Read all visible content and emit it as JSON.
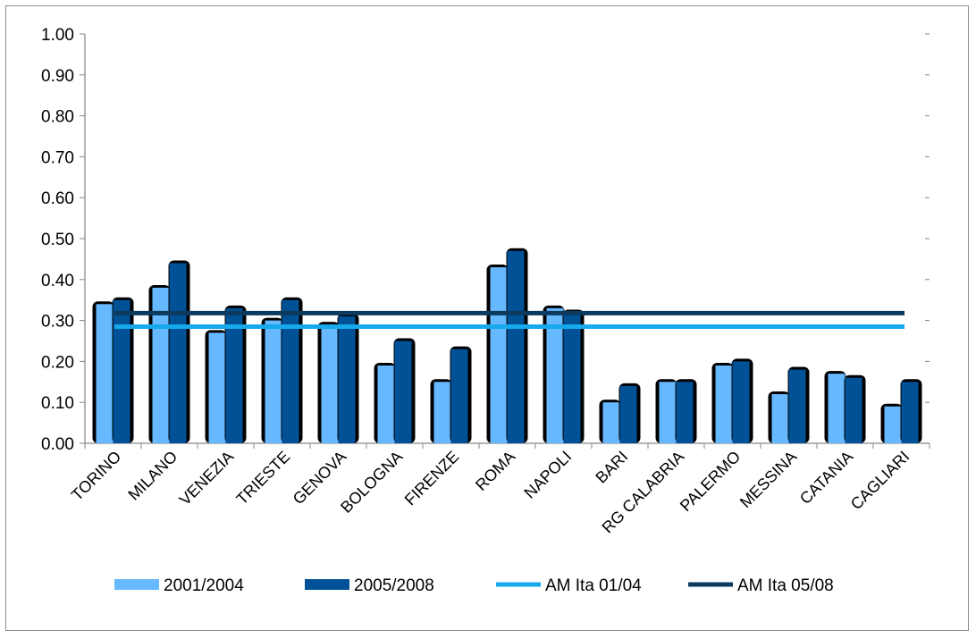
{
  "chart_data": {
    "type": "bar",
    "categories": [
      "TORINO",
      "MILANO",
      "VENEZIA",
      "TRIESTE",
      "GENOVA",
      "BOLOGNA",
      "FIRENZE",
      "ROMA",
      "NAPOLI",
      "BARI",
      "RG CALABRIA",
      "PALERMO",
      "MESSINA",
      "CATANIA",
      "CAGLIARI"
    ],
    "series": [
      {
        "name": "2001/2004",
        "kind": "bar",
        "color": "#66b8ff",
        "values": [
          0.34,
          0.38,
          0.27,
          0.3,
          0.29,
          0.19,
          0.15,
          0.43,
          0.33,
          0.1,
          0.15,
          0.19,
          0.12,
          0.17,
          0.09
        ]
      },
      {
        "name": "2005/2008",
        "kind": "bar",
        "color": "#005196",
        "values": [
          0.35,
          0.44,
          0.33,
          0.35,
          0.31,
          0.25,
          0.23,
          0.47,
          0.32,
          0.14,
          0.15,
          0.2,
          0.18,
          0.16,
          0.15
        ]
      },
      {
        "name": "AM Ita 01/04",
        "kind": "line",
        "color": "#17a9ec",
        "value": 0.285
      },
      {
        "name": "AM Ita 05/08",
        "kind": "line",
        "color": "#0b3a5e",
        "value": 0.318
      }
    ],
    "yticks": [
      "0.00",
      "0.10",
      "0.20",
      "0.30",
      "0.40",
      "0.50",
      "0.60",
      "0.70",
      "0.80",
      "0.90",
      "1.00"
    ],
    "ylim": [
      0,
      1.0
    ],
    "grid": false,
    "legend_position": "bottom",
    "title": "",
    "xlabel": "",
    "ylabel": ""
  }
}
